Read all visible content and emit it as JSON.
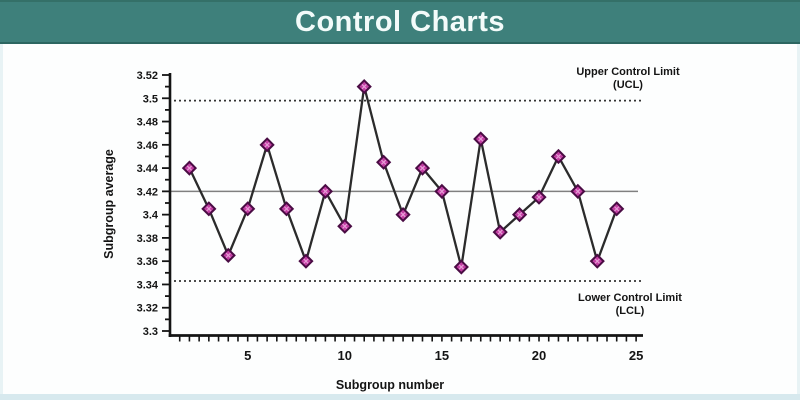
{
  "header": {
    "title": "Control Charts",
    "bg_color": "#3e807b",
    "text_color": "#f3fbfa"
  },
  "chart_data": {
    "type": "line",
    "title": "",
    "xlabel": "Subgroup number",
    "ylabel": "Subgroup average",
    "x": [
      2,
      3,
      4,
      5,
      6,
      7,
      8,
      9,
      10,
      11,
      12,
      13,
      14,
      15,
      16,
      17,
      18,
      19,
      20,
      21,
      22,
      23,
      24
    ],
    "values": [
      3.44,
      3.405,
      3.365,
      3.405,
      3.46,
      3.405,
      3.36,
      3.42,
      3.39,
      3.51,
      3.445,
      3.4,
      3.44,
      3.42,
      3.355,
      3.465,
      3.385,
      3.4,
      3.415,
      3.45,
      3.42,
      3.36,
      3.405
    ],
    "center_line": 3.42,
    "ucl": 3.498,
    "lcl": 3.343,
    "ucl_label_line1": "Upper Control Limit",
    "ucl_label_line2": "(UCL)",
    "lcl_label_line1": "Lower Control Limit",
    "lcl_label_line2": "(LCL)",
    "ylim": [
      3.3,
      3.52
    ],
    "xlim": [
      1,
      25.2
    ],
    "ytick_labels": [
      "3.3",
      "3.32",
      "3.34",
      "3.36",
      "3.38",
      "3.4",
      "3.42",
      "3.44",
      "3.46",
      "3.48",
      "3.5",
      "3.52"
    ],
    "ytick_minor_step": 0.01,
    "xtick_labels": [
      "5",
      "10",
      "15",
      "20",
      "25"
    ],
    "xtick_label_positions": [
      5,
      10,
      15,
      20,
      25
    ],
    "xtick_minor_step": 0.5,
    "grid": false,
    "legend": "none",
    "marker": "diamond",
    "colors": {
      "series_line": "#2b2b2b",
      "marker_fill": "#c33ea3",
      "marker_stroke": "#4a0c44",
      "marker_inner": "#eba7dd",
      "center_line": "#808080",
      "control_line": "#333333",
      "axis": "#141414",
      "text": "#141414"
    }
  }
}
